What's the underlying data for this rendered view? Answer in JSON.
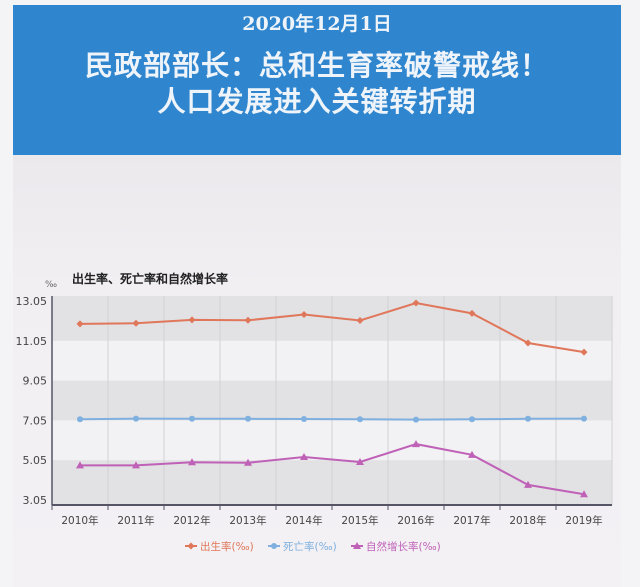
{
  "header": {
    "date": "2020年12月1日",
    "headline_line1": "民政部部长：总和生育率破警戒线！",
    "headline_line2": "人口发展进入关键转折期"
  },
  "colors": {
    "header_bg": "#2f86cf",
    "birth": "#e0775a",
    "death": "#7fb0e0",
    "natural": "#c061b8"
  },
  "chart_data": {
    "type": "line",
    "title": "出生率、死亡率和自然增长率",
    "ylabel": "‰",
    "categories": [
      "2010年",
      "2011年",
      "2012年",
      "2013年",
      "2014年",
      "2015年",
      "2016年",
      "2017年",
      "2018年",
      "2019年"
    ],
    "yticks": [
      "13.05",
      "11.05",
      "9.05",
      "7.05",
      "5.05",
      "3.05"
    ],
    "ylim": [
      3.05,
      13.05
    ],
    "grid": true,
    "legend_position": "bottom",
    "series": [
      {
        "name": "出生率(‰)",
        "marker": "diamond",
        "values": [
          11.9,
          11.93,
          12.1,
          12.08,
          12.37,
          12.07,
          12.95,
          12.43,
          10.94,
          10.48
        ]
      },
      {
        "name": "死亡率(‰)",
        "marker": "circle",
        "values": [
          7.11,
          7.14,
          7.13,
          7.13,
          7.12,
          7.11,
          7.09,
          7.11,
          7.13,
          7.14
        ]
      },
      {
        "name": "自然增长率(‰)",
        "marker": "triangle",
        "values": [
          4.79,
          4.79,
          4.95,
          4.92,
          5.21,
          4.96,
          5.86,
          5.32,
          3.81,
          3.34
        ]
      }
    ]
  }
}
